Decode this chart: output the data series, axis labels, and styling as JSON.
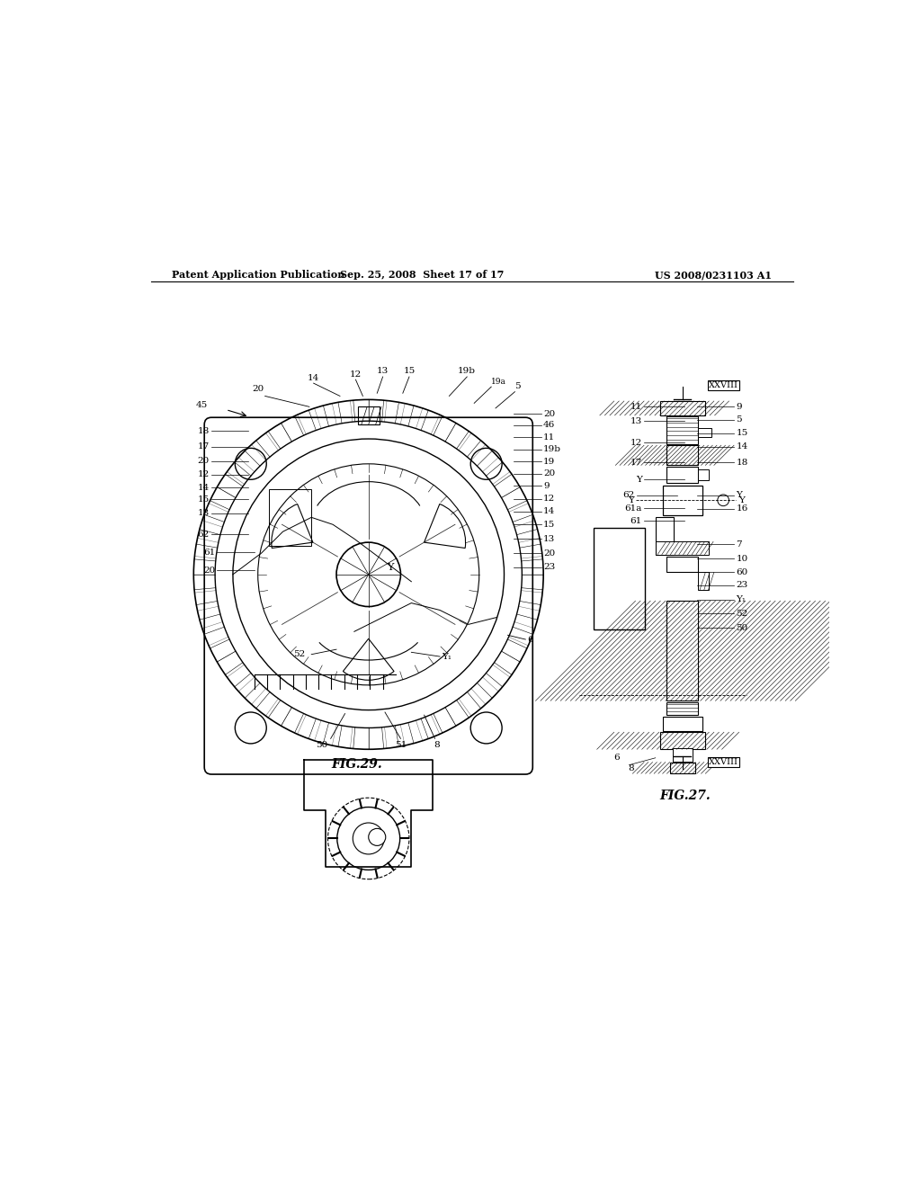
{
  "background_color": "#ffffff",
  "header_left": "Patent Application Publication",
  "header_middle": "Sep. 25, 2008  Sheet 17 of 17",
  "header_right": "US 2008/0231103 A1",
  "fig29_label": "FIG.29.",
  "fig27_label": "FIG.27.",
  "line_color": "#000000"
}
